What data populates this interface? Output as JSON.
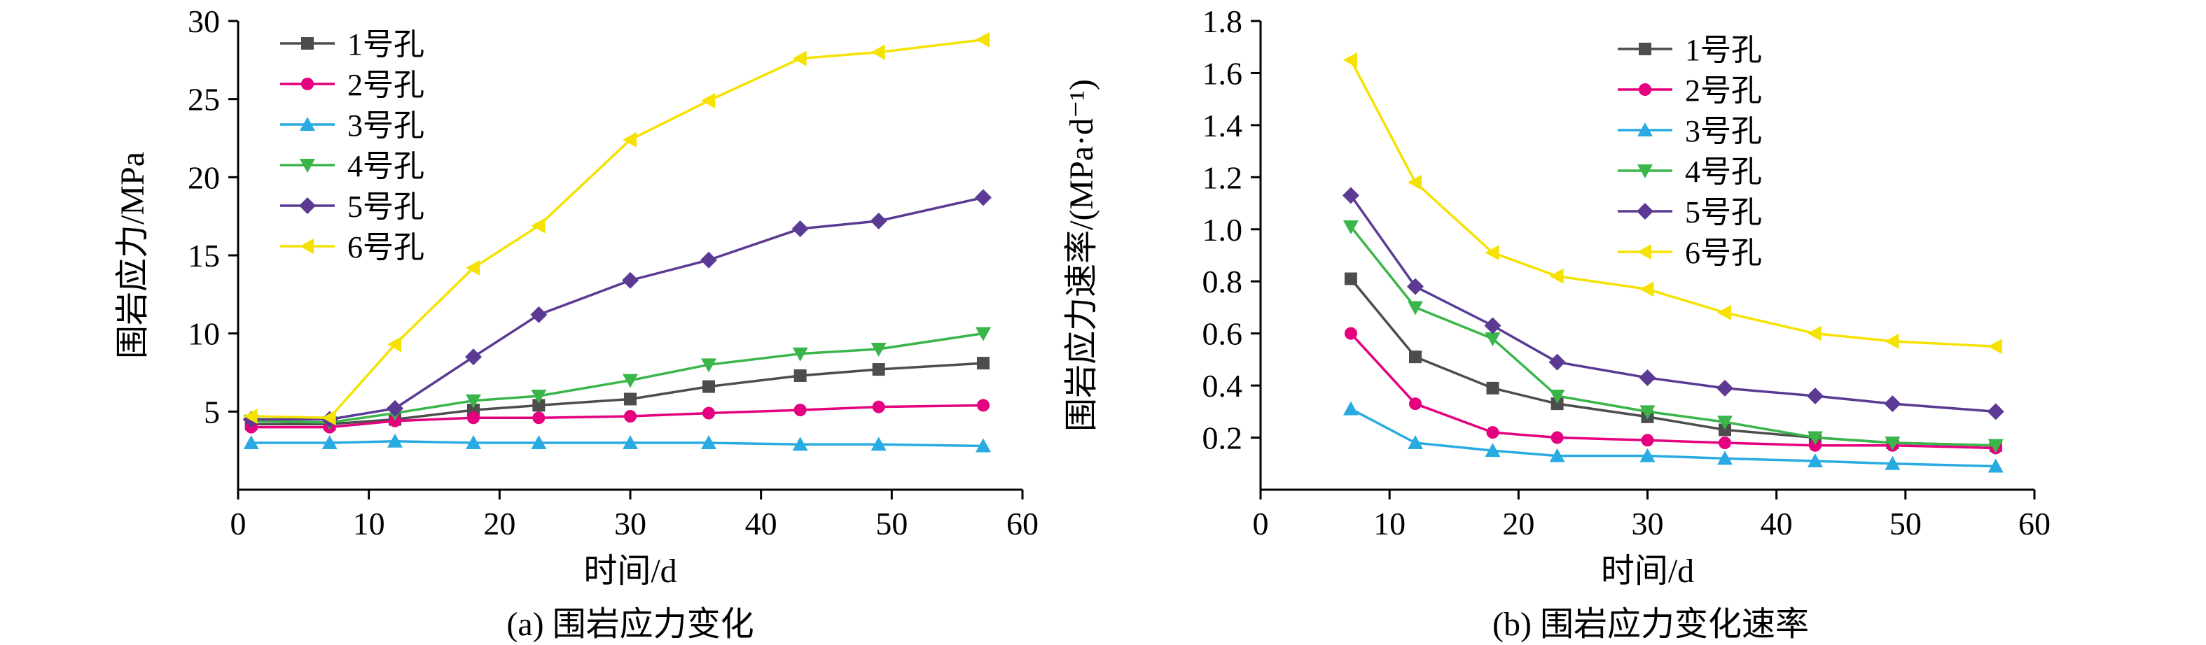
{
  "figure": {
    "background": "#ffffff"
  },
  "chart_data": [
    {
      "type": "line",
      "caption": "(a) 围岩应力变化",
      "xlabel": "时间/d",
      "ylabel": "围岩应力/MPa",
      "xlim": [
        0,
        60
      ],
      "ylim": [
        0,
        30
      ],
      "xticks": [
        0,
        10,
        20,
        30,
        40,
        50,
        60
      ],
      "yticks": [
        5,
        10,
        15,
        20,
        25,
        30
      ],
      "ytick_decimals": 0,
      "grid": false,
      "legend_position": "top-left",
      "x": [
        1,
        7,
        12,
        18,
        23,
        30,
        36,
        43,
        49,
        57
      ],
      "series": [
        {
          "name": "1号孔",
          "marker": "square",
          "color": "#4d4d4d",
          "values": [
            4.2,
            4.2,
            4.5,
            5.1,
            5.4,
            5.8,
            6.6,
            7.3,
            7.7,
            8.1
          ]
        },
        {
          "name": "2号孔",
          "marker": "circle",
          "color": "#e4007f",
          "values": [
            4.0,
            4.0,
            4.4,
            4.6,
            4.6,
            4.7,
            4.9,
            5.1,
            5.3,
            5.4
          ]
        },
        {
          "name": "3号孔",
          "marker": "triangle-up",
          "color": "#29abe2",
          "values": [
            3.0,
            3.0,
            3.1,
            3.0,
            3.0,
            3.0,
            3.0,
            2.9,
            2.9,
            2.8
          ]
        },
        {
          "name": "4号孔",
          "marker": "triangle-down",
          "color": "#3ab54a",
          "values": [
            4.4,
            4.3,
            4.9,
            5.7,
            6.0,
            7.0,
            8.0,
            8.7,
            9.0,
            10.0
          ]
        },
        {
          "name": "5号孔",
          "marker": "diamond",
          "color": "#5b3a94",
          "values": [
            4.5,
            4.5,
            5.2,
            8.5,
            11.2,
            13.4,
            14.7,
            16.7,
            17.2,
            18.7
          ]
        },
        {
          "name": "6号孔",
          "marker": "triangle-left",
          "color": "#f5e200",
          "values": [
            4.7,
            4.6,
            9.3,
            14.2,
            16.9,
            22.4,
            24.9,
            27.6,
            28.0,
            28.8
          ]
        }
      ]
    },
    {
      "type": "line",
      "caption": "(b) 围岩应力变化速率",
      "xlabel": "时间/d",
      "ylabel": "围岩应力速率/(MPa·d⁻¹)",
      "xlim": [
        0,
        60
      ],
      "ylim": [
        0,
        1.8
      ],
      "xticks": [
        0,
        10,
        20,
        30,
        40,
        50,
        60
      ],
      "yticks": [
        0.2,
        0.4,
        0.6,
        0.8,
        1.0,
        1.2,
        1.4,
        1.6,
        1.8
      ],
      "ytick_decimals": 1,
      "grid": false,
      "legend_position": "top-right",
      "x": [
        7,
        12,
        18,
        23,
        30,
        36,
        43,
        49,
        57
      ],
      "series": [
        {
          "name": "1号孔",
          "marker": "square",
          "color": "#4d4d4d",
          "values": [
            0.81,
            0.51,
            0.39,
            0.33,
            0.28,
            0.23,
            0.2,
            0.18,
            0.17
          ]
        },
        {
          "name": "2号孔",
          "marker": "circle",
          "color": "#e4007f",
          "values": [
            0.6,
            0.33,
            0.22,
            0.2,
            0.19,
            0.18,
            0.17,
            0.17,
            0.16
          ]
        },
        {
          "name": "3号孔",
          "marker": "triangle-up",
          "color": "#29abe2",
          "values": [
            0.31,
            0.18,
            0.15,
            0.13,
            0.13,
            0.12,
            0.11,
            0.1,
            0.09
          ]
        },
        {
          "name": "4号孔",
          "marker": "triangle-down",
          "color": "#3ab54a",
          "values": [
            1.01,
            0.7,
            0.58,
            0.36,
            0.3,
            0.26,
            0.2,
            0.18,
            0.17
          ]
        },
        {
          "name": "5号孔",
          "marker": "diamond",
          "color": "#5b3a94",
          "values": [
            1.13,
            0.78,
            0.63,
            0.49,
            0.43,
            0.39,
            0.36,
            0.33,
            0.3
          ]
        },
        {
          "name": "6号孔",
          "marker": "triangle-left",
          "color": "#f5e200",
          "values": [
            1.65,
            1.18,
            0.91,
            0.82,
            0.77,
            0.68,
            0.6,
            0.57,
            0.55
          ]
        }
      ]
    }
  ]
}
